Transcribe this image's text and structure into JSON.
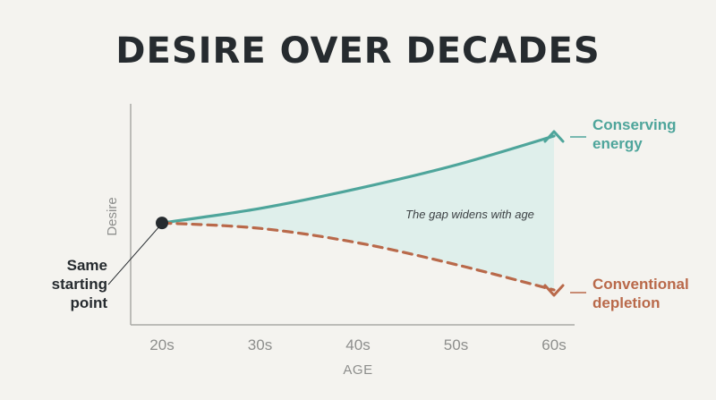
{
  "title": "DESIRE OVER DECADES",
  "colors": {
    "conserving": "#4ea59b",
    "conventional": "#b9694a",
    "fill": "#ddeeea",
    "axis": "#a9a9a5",
    "text": "#262b2f",
    "muted": "#8d8e8c"
  },
  "chart_data": {
    "type": "line",
    "title": "DESIRE OVER DECADES",
    "xlabel": "AGE",
    "ylabel": "Desire",
    "categories": [
      "20s",
      "30s",
      "40s",
      "50s",
      "60s"
    ],
    "x": [
      20,
      30,
      40,
      50,
      60
    ],
    "ylim": [
      0,
      100
    ],
    "grid": false,
    "series": [
      {
        "name": "Conserving energy",
        "label_lines": [
          "Conserving",
          "energy"
        ],
        "style": "solid",
        "color": "#4ea59b",
        "end_marker": "chevron-up",
        "values": [
          45,
          53,
          64,
          77,
          93
        ]
      },
      {
        "name": "Conventional depletion",
        "label_lines": [
          "Conventional",
          "depletion"
        ],
        "style": "dashed",
        "color": "#b9694a",
        "end_marker": "chevron-down",
        "values": [
          45,
          42,
          34,
          22,
          8
        ]
      }
    ],
    "annotations": {
      "gap_text": "The gap widens with age",
      "start_label_lines": [
        "Same",
        "starting",
        "point"
      ]
    }
  }
}
